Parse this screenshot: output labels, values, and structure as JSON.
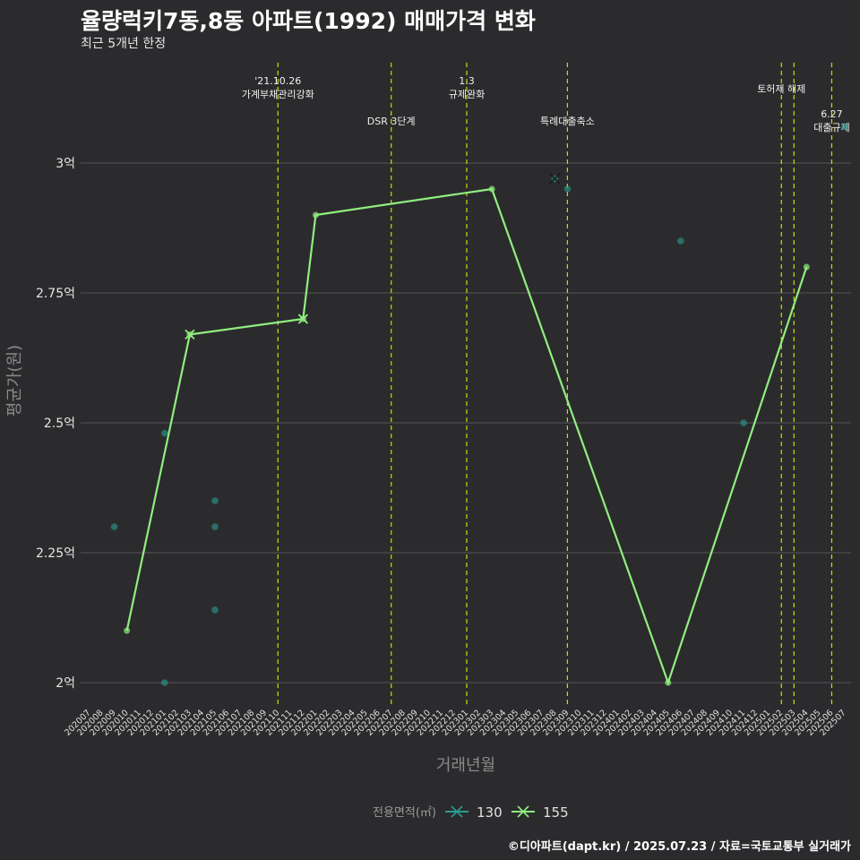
{
  "header": {
    "title": "율량럭키7동,8동 아파트(1992) 매매가격 변화",
    "subtitle": "최근 5개년 한정"
  },
  "caption": "©디아파트(dapt.kr) / 2025.07.23 / 자료=국토교통부 실거래가",
  "colors": {
    "background": "#2b2b2d",
    "series_130": "#2a9d8f",
    "series_155": "#90ee80",
    "event_line": "#d4d800"
  },
  "chart_data": {
    "type": "line",
    "title": "율량럭키7동,8동 아파트(1992) 매매가격 변화",
    "xlabel": "거래년월",
    "ylabel": "평균가(원)",
    "ylim": [
      1.95,
      3.15
    ],
    "y_unit": "억",
    "y_ticks": [
      {
        "value": 2.0,
        "label": "2억"
      },
      {
        "value": 2.25,
        "label": "2.25억"
      },
      {
        "value": 2.5,
        "label": "2.5억"
      },
      {
        "value": 2.75,
        "label": "2.75억"
      },
      {
        "value": 3.0,
        "label": "3억"
      }
    ],
    "x_categories": [
      "202007",
      "202008",
      "202009",
      "202010",
      "202011",
      "202012",
      "202101",
      "202102",
      "202103",
      "202104",
      "202105",
      "202106",
      "202107",
      "202108",
      "202109",
      "202110",
      "202111",
      "202112",
      "202201",
      "202202",
      "202203",
      "202204",
      "202205",
      "202206",
      "202207",
      "202208",
      "202209",
      "202210",
      "202211",
      "202212",
      "202301",
      "202302",
      "202303",
      "202304",
      "202305",
      "202306",
      "202307",
      "202308",
      "202309",
      "202310",
      "202311",
      "202312",
      "202401",
      "202402",
      "202403",
      "202404",
      "202405",
      "202406",
      "202407",
      "202408",
      "202409",
      "202410",
      "202411",
      "202412",
      "202501",
      "202502",
      "202503",
      "202504",
      "202505",
      "202506",
      "202507"
    ],
    "legend": {
      "title": "전용면적(㎡)",
      "position": "bottom"
    },
    "series": [
      {
        "name": "130",
        "line": [
          {
            "x": "202308",
            "y": 2.97
          }
        ],
        "points": [
          {
            "x": "202009",
            "y": 2.3
          },
          {
            "x": "202101",
            "y": 2.48
          },
          {
            "x": "202101",
            "y": 2.0
          },
          {
            "x": "202105",
            "y": 2.35
          },
          {
            "x": "202105",
            "y": 2.3
          },
          {
            "x": "202105",
            "y": 2.14
          },
          {
            "x": "202309",
            "y": 2.95
          },
          {
            "x": "202406",
            "y": 2.85
          },
          {
            "x": "202411",
            "y": 2.5
          },
          {
            "x": "202507",
            "y": 3.07
          }
        ]
      },
      {
        "name": "155",
        "line": [
          {
            "x": "202010",
            "y": 2.1
          },
          {
            "x": "202103",
            "y": 2.67
          },
          {
            "x": "202112",
            "y": 2.7
          },
          {
            "x": "202201",
            "y": 2.9
          },
          {
            "x": "202303",
            "y": 2.95
          },
          {
            "x": "202405",
            "y": 2.0
          },
          {
            "x": "202504",
            "y": 2.8
          }
        ],
        "cross_markers": [
          "202103",
          "202112"
        ]
      }
    ],
    "events": [
      {
        "x": "202110",
        "lines": [
          "'21.10.26",
          "가계부채관리강화"
        ],
        "row": 1
      },
      {
        "x": "202207",
        "lines": [
          "DSR 3단계"
        ],
        "row": 3
      },
      {
        "x": "202301",
        "lines": [
          "1.3",
          "규제완화"
        ],
        "row": 1
      },
      {
        "x": "202309",
        "lines": [
          "특례대출축소"
        ],
        "row": 3
      },
      {
        "x": "202502",
        "lines": [
          "토허제 해제"
        ],
        "row": 2
      },
      {
        "x": "202503",
        "lines": [],
        "row": 2
      },
      {
        "x": "202506",
        "lines": [
          "6.27",
          "대출규제"
        ],
        "row": 4
      }
    ]
  }
}
